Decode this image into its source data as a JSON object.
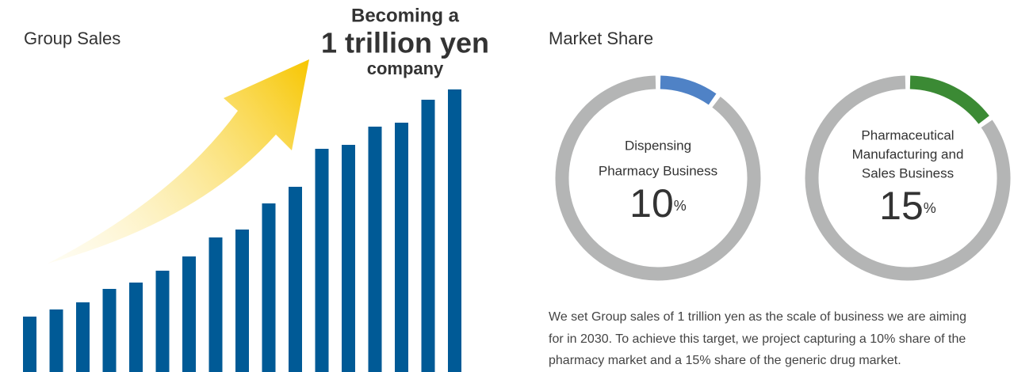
{
  "headline": [
    "Becoming a",
    "1 trillion yen",
    "company"
  ],
  "paragraph": [
    "We set Group sales of 1 trillion yen as the scale of business we are aiming",
    "for in 2030. To achieve this target, we project capturing a 10% share of the",
    "pharmacy market and a 15% share of the generic drug market."
  ],
  "chart_data": [
    {
      "type": "bar",
      "title": "Group Sales",
      "values": [
        70,
        79,
        88,
        105,
        113,
        128,
        146,
        170,
        180,
        213,
        234,
        282,
        287,
        310,
        315,
        344,
        357
      ],
      "ylim": [
        0,
        360
      ],
      "color": "#005a96"
    },
    {
      "type": "pie",
      "title": "Market Share",
      "label": [
        "Dispensing",
        "Pharmacy Business"
      ],
      "values": [
        10,
        90
      ],
      "colors": [
        "#4f82c6",
        "#b4b5b5"
      ],
      "unit": "%"
    },
    {
      "type": "pie",
      "label": [
        "Pharmaceutical",
        "Manufacturing and",
        "Sales Business"
      ],
      "values": [
        15,
        85
      ],
      "colors": [
        "#3b8a34",
        "#b4b5b5"
      ],
      "unit": "%"
    }
  ]
}
